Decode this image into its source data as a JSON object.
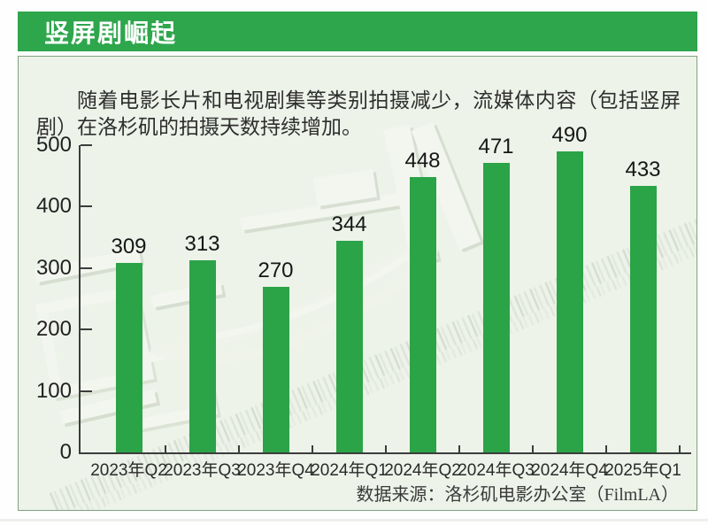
{
  "header": {
    "title": "竖屏剧崛起"
  },
  "intro": {
    "text": "随着电影长片和电视剧集等类别拍摄减少，流媒体内容（包括竖屏剧）在洛杉矶的拍摄天数持续增加。"
  },
  "source": {
    "text": "数据来源：洛杉矶电影办公室（FilmLA）"
  },
  "colors": {
    "header_green": "#2ea64c",
    "bar_green": "#2ba347",
    "panel_bg": "#edf3e9",
    "panel_border": "#7fa37f",
    "axis": "#3c3c3c"
  },
  "chart_data": {
    "type": "bar",
    "categories": [
      "2023年Q2",
      "2023年Q3",
      "2023年Q4",
      "2024年Q1",
      "2024年Q2",
      "2024年Q3",
      "2024年Q4",
      "2025年Q1"
    ],
    "values": [
      309,
      313,
      270,
      344,
      448,
      471,
      490,
      433
    ],
    "title": "竖屏剧崛起",
    "xlabel": "",
    "ylabel": "",
    "ylim": [
      0,
      500
    ],
    "yticks": [
      0,
      100,
      200,
      300,
      400,
      500
    ],
    "bar_color": "#2ba347",
    "grid": false,
    "legend": null,
    "value_labels": true
  }
}
